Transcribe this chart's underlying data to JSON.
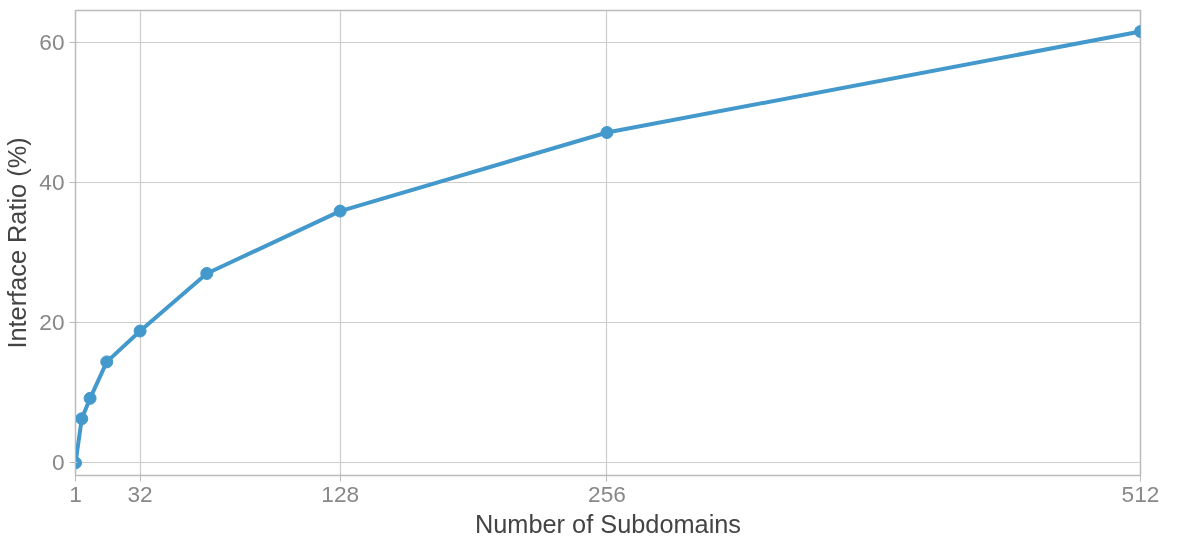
{
  "chart_data": {
    "type": "line",
    "xlabel": "Number of Subdomains",
    "ylabel": "Interface Ratio (%)",
    "x": [
      1,
      4,
      8,
      16,
      32,
      64,
      128,
      256,
      512
    ],
    "series": [
      {
        "color": "#4499cc",
        "values": [
          0,
          6.3,
          9.2,
          14.4,
          18.8,
          27.0,
          35.9,
          47.1,
          61.5
        ]
      }
    ],
    "xlim": [
      1,
      512
    ],
    "ylim": [
      -1.8,
      64.5
    ],
    "xticks": [
      1,
      32,
      128,
      256,
      512
    ],
    "yticks": [
      0,
      20,
      40,
      60
    ],
    "grid": true,
    "marker": "circle",
    "line_style": "solid"
  }
}
